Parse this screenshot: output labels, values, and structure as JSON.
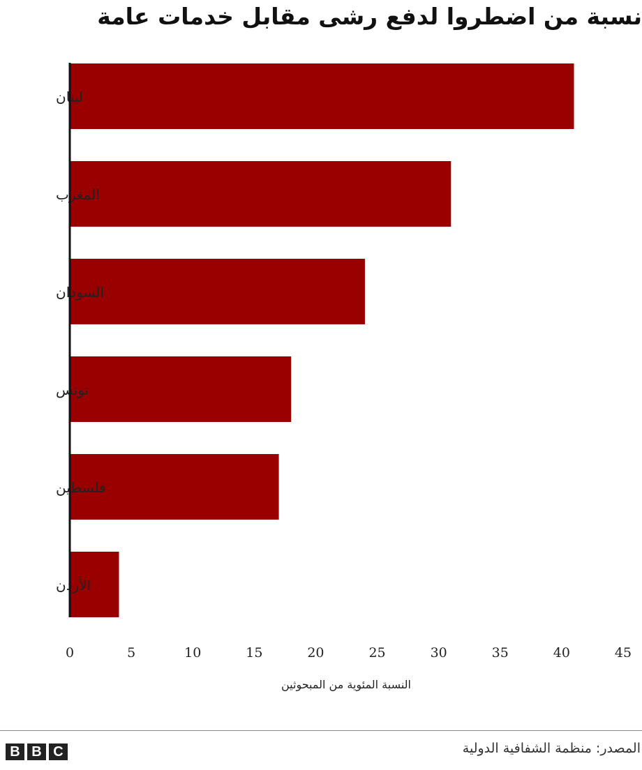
{
  "title": "نسبة من اضطروا لدفع رشى مقابل خدمات عامة",
  "source": "المصدر: منظمة الشفافية الدولية",
  "logo": {
    "name": "BBC",
    "letters": [
      "B",
      "B",
      "C"
    ]
  },
  "colors": {
    "bar": "#990000",
    "axis": "#111111",
    "text": "#222222"
  },
  "chart_data": {
    "type": "bar",
    "orientation": "horizontal",
    "categories": [
      "لبنان",
      "المغرب",
      "السودان",
      "تونس",
      "فلسطين",
      "الأردن"
    ],
    "values": [
      41,
      31,
      24,
      18,
      17,
      4
    ],
    "xlabel": "النسبة المئوية من المبحوثين",
    "ylabel": "",
    "xlim": [
      0,
      45
    ],
    "xticks": [
      "0",
      "5",
      "10",
      "15",
      "20",
      "25",
      "30",
      "35",
      "40",
      "45"
    ],
    "grid": false
  }
}
